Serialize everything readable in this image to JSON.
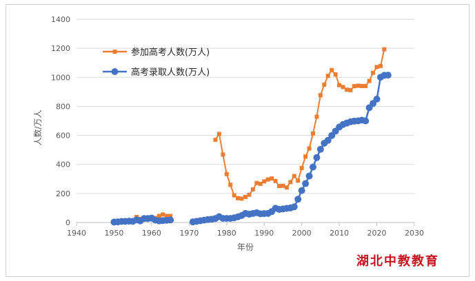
{
  "chart_data": {
    "type": "line",
    "title": "",
    "xlabel": "年份",
    "ylabel": "人数/万人",
    "xlim": [
      1940,
      2030
    ],
    "ylim": [
      0,
      1400
    ],
    "x_ticks": [
      1940,
      1950,
      1960,
      1970,
      1980,
      1990,
      2000,
      2010,
      2020,
      2030
    ],
    "y_ticks": [
      0,
      200,
      400,
      600,
      800,
      1000,
      1200,
      1400
    ],
    "grid": "horizontal",
    "legend_position": "top-left",
    "series": [
      {
        "name": "参加高考人数(万人)",
        "color": "#ED7D31",
        "marker": "square",
        "segments": [
          {
            "x": [
              1950,
              1951,
              1952,
              1953,
              1954,
              1955,
              1956,
              1957,
              1958,
              1959,
              1960,
              1961,
              1962,
              1963,
              1964,
              1965
            ],
            "y": [
              5,
              3,
              8,
              10,
              12,
              15,
              38,
              25,
              27,
              30,
              33,
              30,
              45,
              55,
              45,
              45
            ]
          },
          {
            "x": [
              1977,
              1978,
              1979,
              1980,
              1981,
              1982,
              1983,
              1984,
              1985,
              1986,
              1987,
              1988,
              1989,
              1990,
              1991,
              1992,
              1993,
              1994,
              1995,
              1996,
              1997,
              1998,
              1999,
              2000,
              2001,
              2002,
              2003,
              2004,
              2005,
              2006,
              2007,
              2008,
              2009,
              2010,
              2011,
              2012,
              2013,
              2014,
              2015,
              2016,
              2017,
              2018,
              2019,
              2020,
              2021,
              2022
            ],
            "y": [
              570,
              610,
              468,
              333,
              259,
              187,
              167,
              164,
              176,
              191,
              228,
              272,
              266,
              283,
              296,
              303,
              286,
              251,
              253,
              241,
              278,
              320,
              288,
              375,
              454,
              510,
              613,
              729,
              877,
              950,
              1010,
              1050,
              1020,
              946,
              933,
              915,
              912,
              939,
              942,
              940,
              940,
              975,
              1031,
              1071,
              1078,
              1193
            ]
          }
        ]
      },
      {
        "name": "高考录取人数(万人)",
        "color": "#4472C4",
        "marker": "circle",
        "segments": [
          {
            "x": [
              1950,
              1951,
              1952,
              1953,
              1954,
              1955,
              1956,
              1957,
              1958,
              1959,
              1960,
              1961,
              1962,
              1963,
              1964,
              1965
            ],
            "y": [
              3,
              4,
              7,
              8,
              9,
              8,
              18,
              11,
              27,
              27,
              30,
              16,
              11,
              13,
              15,
              17
            ]
          },
          {
            "x": [
              1971,
              1972,
              1973,
              1974,
              1975,
              1976,
              1977,
              1978,
              1979,
              1980,
              1981,
              1982,
              1983,
              1984,
              1985,
              1986,
              1987,
              1988,
              1989,
              1990,
              1991,
              1992,
              1993,
              1994,
              1995,
              1996,
              1997,
              1998,
              1999,
              2000,
              2001,
              2002,
              2003,
              2004,
              2005,
              2006,
              2007,
              2008,
              2009,
              2010,
              2011,
              2012,
              2013,
              2014,
              2015,
              2016,
              2017,
              2018,
              2019,
              2020,
              2021,
              2022,
              2023
            ],
            "y": [
              4,
              8,
              12,
              16,
              20,
              22,
              27,
              40,
              28,
              28,
              28,
              32,
              39,
              48,
              62,
              57,
              62,
              67,
              60,
              61,
              62,
              75,
              98,
              90,
              93,
              97,
              100,
              108,
              160,
              220,
              268,
              320,
              382,
              447,
              504,
              546,
              566,
              599,
              629,
              657,
              675,
              685,
              694,
              698,
              700,
              705,
              700,
              791,
              820,
              850,
              1001,
              1014,
              1015
            ]
          }
        ]
      }
    ]
  },
  "watermark": "湖北中教教育"
}
